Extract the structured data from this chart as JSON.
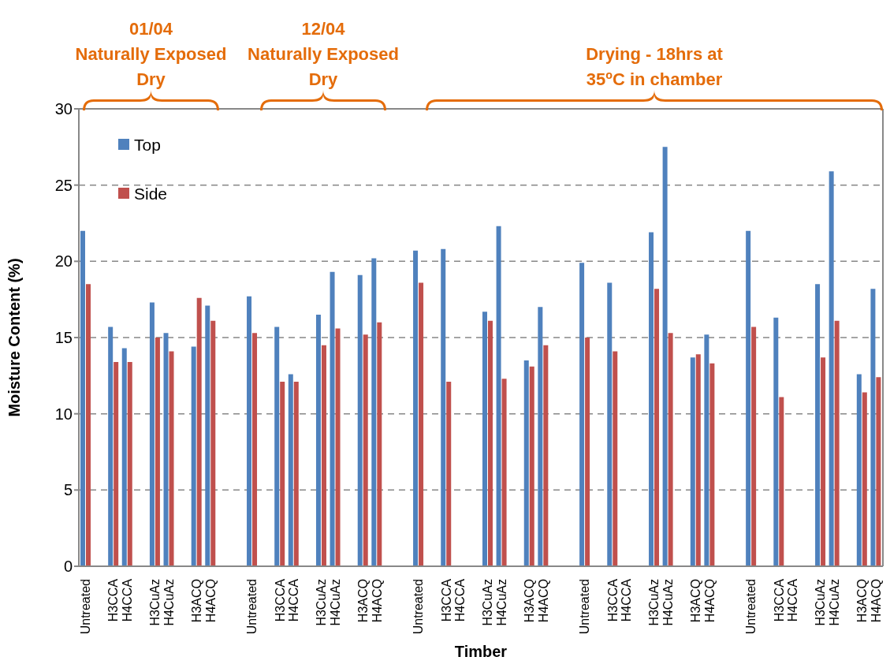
{
  "chart_data": {
    "type": "bar",
    "xlabel": "Timber",
    "ylabel": "Moisture Content (%)",
    "categories": [
      "Untreated",
      null,
      "H3CCA",
      "H4CCA",
      null,
      "H3CuAz",
      "H4CuAz",
      null,
      "H3ACQ",
      "H4ACQ",
      null,
      null,
      "Untreated",
      null,
      "H3CCA",
      "H4CCA",
      null,
      "H3CuAz",
      "H4CuAz",
      null,
      "H3ACQ",
      "H4ACQ",
      null,
      null,
      "Untreated",
      null,
      "H3CCA",
      "H4CCA",
      null,
      "H3CuAz",
      "H4CuAz",
      null,
      "H3ACQ",
      "H4ACQ",
      null,
      null,
      "Untreated",
      null,
      "H3CCA",
      "H4CCA",
      null,
      "H3CuAz",
      "H4CuAz",
      null,
      "H3ACQ",
      "H4ACQ",
      null,
      null,
      "Untreated",
      null,
      "H3CCA",
      "H4CCA",
      null,
      "H3CuAz",
      "H4CuAz",
      null,
      "H3ACQ",
      "H4ACQ"
    ],
    "series": [
      {
        "name": "Top",
        "color": "#4f81bd",
        "values": [
          22.0,
          null,
          15.7,
          14.3,
          null,
          17.3,
          15.3,
          null,
          14.4,
          17.1,
          null,
          null,
          17.7,
          null,
          15.7,
          12.6,
          null,
          16.5,
          19.3,
          null,
          19.1,
          20.2,
          null,
          null,
          20.7,
          null,
          20.8,
          null,
          null,
          16.7,
          22.3,
          null,
          13.5,
          17.0,
          null,
          null,
          19.9,
          null,
          18.6,
          null,
          null,
          21.9,
          27.5,
          null,
          13.7,
          15.2,
          null,
          null,
          22.0,
          null,
          16.3,
          null,
          null,
          18.5,
          25.9,
          null,
          12.6,
          18.2
        ]
      },
      {
        "name": "Side",
        "color": "#c0504d",
        "values": [
          18.5,
          null,
          13.4,
          13.4,
          null,
          15.0,
          14.1,
          null,
          17.6,
          16.1,
          null,
          null,
          15.3,
          null,
          12.1,
          12.1,
          null,
          14.5,
          15.6,
          null,
          15.2,
          16.0,
          null,
          null,
          18.6,
          null,
          12.1,
          null,
          null,
          16.1,
          12.3,
          null,
          13.1,
          14.5,
          null,
          null,
          15.0,
          null,
          14.1,
          null,
          null,
          18.2,
          15.3,
          null,
          13.9,
          13.3,
          null,
          null,
          15.7,
          null,
          11.1,
          null,
          null,
          13.7,
          16.1,
          null,
          11.4,
          12.4
        ]
      }
    ],
    "ylim": [
      0,
      30
    ],
    "yticks": [
      0,
      5,
      10,
      15,
      20,
      25,
      30
    ],
    "grid": "y",
    "legend": "top left",
    "annotations": [
      "01/04 Naturally Exposed Dry",
      "12/04 Naturally Exposed Dry",
      "Drying - 18hrs at 35$^{o}$C in chamber"
    ]
  }
}
